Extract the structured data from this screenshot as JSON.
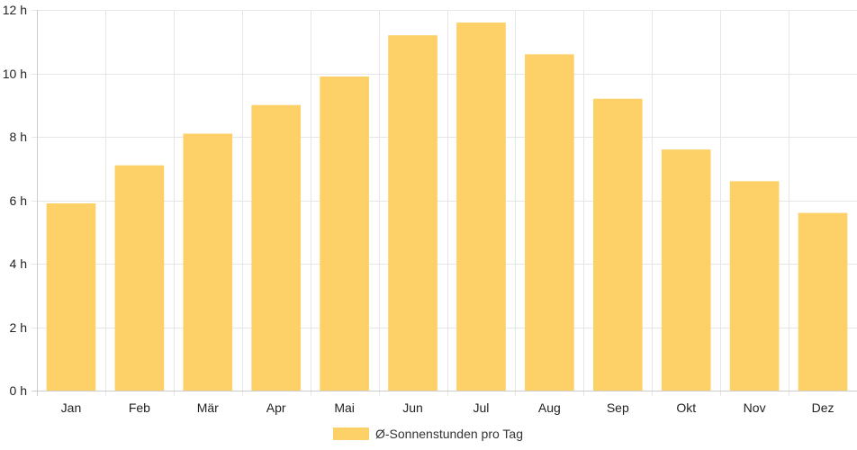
{
  "chart_data": {
    "type": "bar",
    "categories": [
      "Jan",
      "Feb",
      "Mär",
      "Apr",
      "Mai",
      "Jun",
      "Jul",
      "Aug",
      "Sep",
      "Okt",
      "Nov",
      "Dez"
    ],
    "series": [
      {
        "name": "Ø-Sonnenstunden pro Tag",
        "values": [
          5.9,
          7.1,
          8.1,
          9.0,
          9.9,
          11.2,
          11.6,
          10.6,
          9.2,
          7.6,
          6.6,
          5.6
        ],
        "color": "#fdd068"
      }
    ],
    "y_ticks": [
      0,
      2,
      4,
      6,
      8,
      10,
      12
    ],
    "y_tick_suffix": " h",
    "ylim": [
      0,
      12
    ],
    "grid": true,
    "legend_position": "bottom-center",
    "grid_color": "#e6e6e6",
    "axis_color": "#cccccc"
  }
}
